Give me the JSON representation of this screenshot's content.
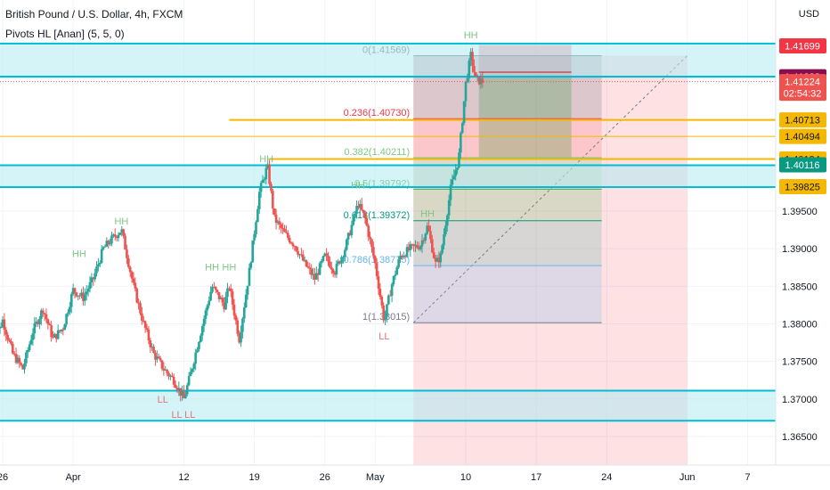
{
  "header": {
    "title": "British Pound / U.S. Dollar, 4h, FXCM",
    "indicator": "Pivots HL [Anan] (5, 5, 0)",
    "currency": "USD"
  },
  "colors": {
    "up": "#26a69a",
    "down": "#ef5350",
    "zone": "#b2ebf2",
    "zoneLine": "#00bcd4",
    "fibLine": "#f5b800",
    "pivotHigh": "#81c784",
    "pivotLow": "#e57373",
    "target": "#b71c1c",
    "current": "#ef5350",
    "green": "#00897b",
    "axisText": "#131722"
  },
  "chart_data": {
    "type": "candlestick",
    "symbol": "GBPUSD",
    "timeframe": "4h",
    "x_ticks": [
      "26",
      "Apr",
      "12",
      "19",
      "26",
      "May",
      "10",
      "17",
      "24",
      "Jun",
      "7"
    ],
    "x_tick_days": [
      -6,
      1,
      12,
      19,
      26,
      31,
      40,
      47,
      54,
      62,
      68
    ],
    "y_ticks": [
      1.365,
      1.37,
      1.375,
      1.38,
      1.385,
      1.39,
      1.395
    ],
    "ylim": [
      1.3612,
      1.4231
    ],
    "price_tags": [
      {
        "label": "1.41699",
        "price": 1.41699,
        "style": "target"
      },
      {
        "label": "1.41288",
        "price": 1.41288,
        "style": "dark"
      },
      {
        "label": "1.41224",
        "price": 1.41224,
        "style": "current",
        "countdown": "02:54:32"
      },
      {
        "label": "1.40713",
        "price": 1.40713,
        "style": "fib"
      },
      {
        "label": "1.40494",
        "price": 1.40494,
        "style": "fib"
      },
      {
        "label": "1.40194",
        "price": 1.40194,
        "style": "fib"
      },
      {
        "label": "1.40116",
        "price": 1.40116,
        "style": "green"
      },
      {
        "label": "1.39825",
        "price": 1.39825,
        "style": "fib"
      }
    ],
    "fib_levels": [
      {
        "label": "0(1.41569)",
        "price": 1.41569,
        "color": "#787b86"
      },
      {
        "label": "0.236(1.40730)",
        "price": 1.4073,
        "color": "#f23645"
      },
      {
        "label": "0.382(1.40211)",
        "price": 1.40211,
        "color": "#81c784"
      },
      {
        "label": "0.5(1.39792)",
        "price": 1.39792,
        "color": "#4caf50"
      },
      {
        "label": "0.618(1.39372)",
        "price": 1.39372,
        "color": "#089981"
      },
      {
        "label": "0.786(1.38775)",
        "price": 1.38775,
        "color": "#64b5f6"
      },
      {
        "label": "1(1.38015)",
        "price": 1.38015,
        "color": "#787b86"
      }
    ],
    "support_resistance_zones": [
      {
        "top": 1.4173,
        "bottom": 1.4129
      },
      {
        "top": 1.4011,
        "bottom": 1.3982
      },
      {
        "top": 1.3711,
        "bottom": 1.3671
      }
    ],
    "horizontal_lines": [
      1.41288,
      1.40713,
      1.40494,
      1.40194
    ],
    "position_tool": {
      "entry": 1.41288,
      "target": 1.40194,
      "stop": 1.41569
    },
    "pivot_labels": [
      {
        "text": "HH",
        "day": 1.6,
        "price": 1.3889
      },
      {
        "text": "HH",
        "day": 5.8,
        "price": 1.3932
      },
      {
        "text": "HH",
        "day": 14.8,
        "price": 1.3871
      },
      {
        "text": "HH",
        "day": 16.5,
        "price": 1.3871
      },
      {
        "text": "HH",
        "day": 20.2,
        "price": 1.4015
      },
      {
        "text": "HH",
        "day": 29.3,
        "price": 1.398
      },
      {
        "text": "HH",
        "day": 36.2,
        "price": 1.3942
      },
      {
        "text": "HH",
        "day": 40.5,
        "price": 1.418
      },
      {
        "text": "LL",
        "day": 9.9,
        "price": 1.3695
      },
      {
        "text": "LL",
        "day": 11.3,
        "price": 1.3675
      },
      {
        "text": "LL",
        "day": 12.6,
        "price": 1.3675
      },
      {
        "text": "LL",
        "day": 31.9,
        "price": 1.3779
      }
    ],
    "price_path": [
      [
        -7,
        1.377
      ],
      [
        -6,
        1.3805
      ],
      [
        -5,
        1.376
      ],
      [
        -4,
        1.374
      ],
      [
        -3,
        1.379
      ],
      [
        -2,
        1.382
      ],
      [
        -1,
        1.378
      ],
      [
        0,
        1.3795
      ],
      [
        1,
        1.3845
      ],
      [
        2,
        1.3835
      ],
      [
        3,
        1.386
      ],
      [
        4,
        1.39
      ],
      [
        5,
        1.3915
      ],
      [
        5.8,
        1.3925
      ],
      [
        7,
        1.385
      ],
      [
        8,
        1.38
      ],
      [
        9,
        1.376
      ],
      [
        10,
        1.374
      ],
      [
        11,
        1.3725
      ],
      [
        12,
        1.37
      ],
      [
        12.6,
        1.373
      ],
      [
        13.5,
        1.378
      ],
      [
        14.8,
        1.385
      ],
      [
        16,
        1.3825
      ],
      [
        16.5,
        1.385
      ],
      [
        17.5,
        1.378
      ],
      [
        18.5,
        1.387
      ],
      [
        19.5,
        1.3975
      ],
      [
        20.3,
        1.401
      ],
      [
        21,
        1.394
      ],
      [
        22,
        1.392
      ],
      [
        23,
        1.3905
      ],
      [
        24,
        1.388
      ],
      [
        25,
        1.386
      ],
      [
        26,
        1.389
      ],
      [
        27,
        1.387
      ],
      [
        28,
        1.39
      ],
      [
        29.3,
        1.396
      ],
      [
        30,
        1.394
      ],
      [
        31,
        1.388
      ],
      [
        31.9,
        1.3803
      ],
      [
        32.6,
        1.385
      ],
      [
        33.5,
        1.389
      ],
      [
        34.5,
        1.39
      ],
      [
        35.5,
        1.3905
      ],
      [
        36.2,
        1.393
      ],
      [
        37,
        1.388
      ],
      [
        37.5,
        1.389
      ],
      [
        38.5,
        1.398
      ],
      [
        39.3,
        1.402
      ],
      [
        40,
        1.412
      ],
      [
        40.5,
        1.4157
      ],
      [
        41,
        1.4125
      ],
      [
        41.7,
        1.41224
      ]
    ],
    "price_line": {
      "price": 1.41224,
      "label": "1.41224"
    }
  }
}
